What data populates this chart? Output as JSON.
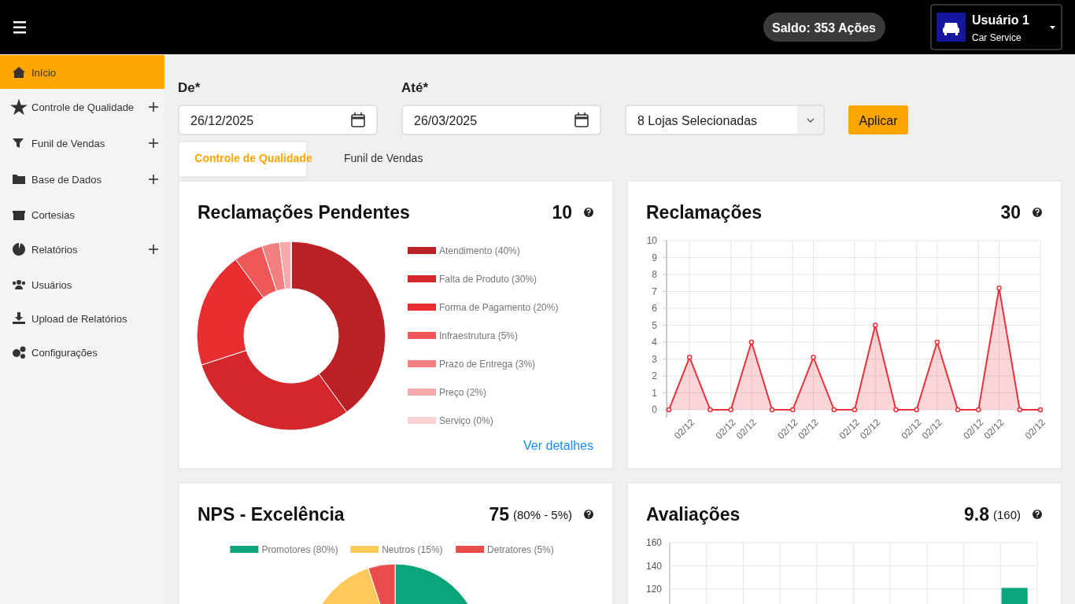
{
  "chart_data": [
    {
      "type": "other",
      "annotations": [
        "Início",
        "Controle de Qualidade",
        "Funil de Vendas",
        "Base de Dados",
        "Cortesias",
        "Relatórios",
        "Usuários",
        "Upload de Relatórios",
        "Configurações",
        "Saldo: 353 Ações",
        "Usuário 1",
        "Car Service",
        "De*",
        "26/12/2025",
        "Até*",
        "26/03/2025",
        "8 Lojas Selecionadas",
        "Aplicar",
        "Controle de Qualidade",
        "Funil de Vendas"
      ]
    },
    {
      "type": "donut",
      "title": "Reclamações Pendentes",
      "subtitle": "10",
      "categories": [
        "Atendimento (40%)",
        "Falta de Produto (30%)",
        "Forma de Pagamento (20%)",
        "Infraestrutura (5%)",
        "Prazo de Entrega (3%)",
        "Preço (2%)",
        "Serviço (0%)"
      ],
      "values": [
        40,
        30,
        20,
        5,
        3,
        2,
        0
      ],
      "colors": [
        "#bb2026",
        "#d4272b",
        "#e92e32",
        "#ef5859",
        "#f28080",
        "#f7a9ab",
        "#fbd3d4"
      ],
      "legend": "right",
      "annotations": [
        "Ver detalhes"
      ]
    },
    {
      "type": "area",
      "title": "Reclamações",
      "subtitle": "30",
      "categories": [
        null,
        "02/12",
        null,
        "02/12",
        "02/12",
        null,
        "02/12",
        "02/12",
        null,
        "02/12",
        "02/12",
        null,
        "02/12",
        "02/12",
        null,
        "02/12",
        "02/12",
        null,
        "02/12"
      ],
      "series": [
        {
          "color": "#e8323a",
          "values": [
            0,
            3.1,
            0,
            0,
            4,
            0,
            0,
            3.1,
            0,
            0,
            5,
            0,
            0,
            4,
            0,
            0,
            7.2,
            0,
            0
          ]
        }
      ],
      "ylim": [
        0,
        10
      ],
      "yticks": [
        0,
        1,
        2,
        3,
        4,
        5,
        6,
        7,
        8,
        9,
        10
      ],
      "grid": true,
      "marker": "circle"
    },
    {
      "type": "pie",
      "title": "NPS - Excelência",
      "subtitle": "75 (80% - 5%)",
      "categories": [
        "Promotores (80%)",
        "Neutros (15%)",
        "Detratores (5%)"
      ],
      "values": [
        80,
        15,
        5
      ],
      "colors": [
        "#0aa57b",
        "#fdc95a",
        "#e84c4c"
      ],
      "legend": "top"
    },
    {
      "type": "bar",
      "title": "Avaliações",
      "subtitle": "9.8 (160)",
      "categories": [
        null,
        null,
        null,
        null,
        null,
        null,
        null,
        null,
        null,
        null
      ],
      "series": [
        {
          "color": "#0aa57b",
          "values": [
            null,
            null,
            null,
            null,
            null,
            null,
            null,
            null,
            null,
            121
          ]
        }
      ],
      "ylim": [
        0,
        160
      ],
      "yticks": [
        120,
        140,
        160
      ],
      "grid": true
    }
  ]
}
